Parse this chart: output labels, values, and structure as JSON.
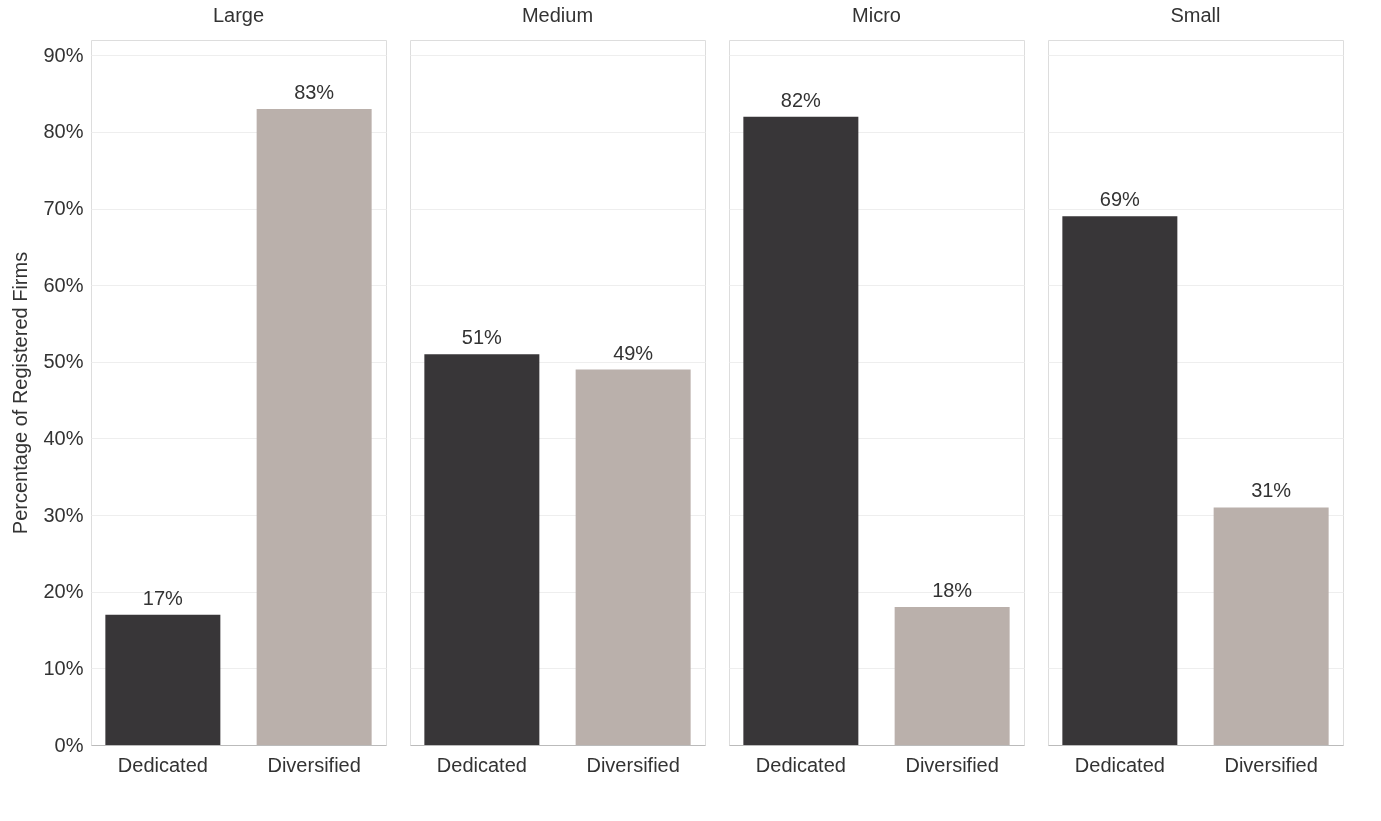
{
  "chart_data": [
    {
      "type": "bar",
      "title": "Large",
      "ylabel": "Percentage of Registered Firms",
      "categories": [
        "Dedicated",
        "Diversified"
      ],
      "values": [
        17,
        83
      ],
      "value_labels": [
        "17%",
        "83%"
      ],
      "colors": [
        "#383638",
        "#bab0ab"
      ],
      "ylim": [
        0,
        92
      ],
      "yticks": [
        {
          "value": 0,
          "label": "0%"
        },
        {
          "value": 10,
          "label": "10%"
        },
        {
          "value": 20,
          "label": "20%"
        },
        {
          "value": 30,
          "label": "30%"
        },
        {
          "value": 40,
          "label": "40%"
        },
        {
          "value": 50,
          "label": "50%"
        },
        {
          "value": 60,
          "label": "60%"
        },
        {
          "value": 70,
          "label": "70%"
        },
        {
          "value": 80,
          "label": "80%"
        },
        {
          "value": 90,
          "label": "90%"
        }
      ],
      "grid": "y"
    },
    {
      "type": "bar",
      "title": "Medium",
      "categories": [
        "Dedicated",
        "Diversified"
      ],
      "values": [
        51,
        49
      ],
      "value_labels": [
        "51%",
        "49%"
      ],
      "colors": [
        "#383638",
        "#bab0ab"
      ],
      "ylim": [
        0,
        92
      ],
      "yticks": [
        0,
        10,
        20,
        30,
        40,
        50,
        60,
        70,
        80,
        90
      ],
      "grid": "y",
      "tick_labels": "x"
    },
    {
      "type": "bar",
      "title": "Micro",
      "categories": [
        "Dedicated",
        "Diversified"
      ],
      "values": [
        82,
        18
      ],
      "value_labels": [
        "82%",
        "18%"
      ],
      "colors": [
        "#383638",
        "#bab0ab"
      ],
      "ylim": [
        0,
        92
      ],
      "yticks": [
        0,
        10,
        20,
        30,
        40,
        50,
        60,
        70,
        80,
        90
      ],
      "grid": "y",
      "tick_labels": "x"
    },
    {
      "type": "bar",
      "title": "Small",
      "categories": [
        "Dedicated",
        "Diversified"
      ],
      "values": [
        69,
        31
      ],
      "value_labels": [
        "69%",
        "31%"
      ],
      "colors": [
        "#383638",
        "#bab0ab"
      ],
      "ylim": [
        0,
        92
      ],
      "yticks": [
        0,
        10,
        20,
        30,
        40,
        50,
        60,
        70,
        80,
        90
      ],
      "grid": "y",
      "tick_labels": "x"
    }
  ]
}
